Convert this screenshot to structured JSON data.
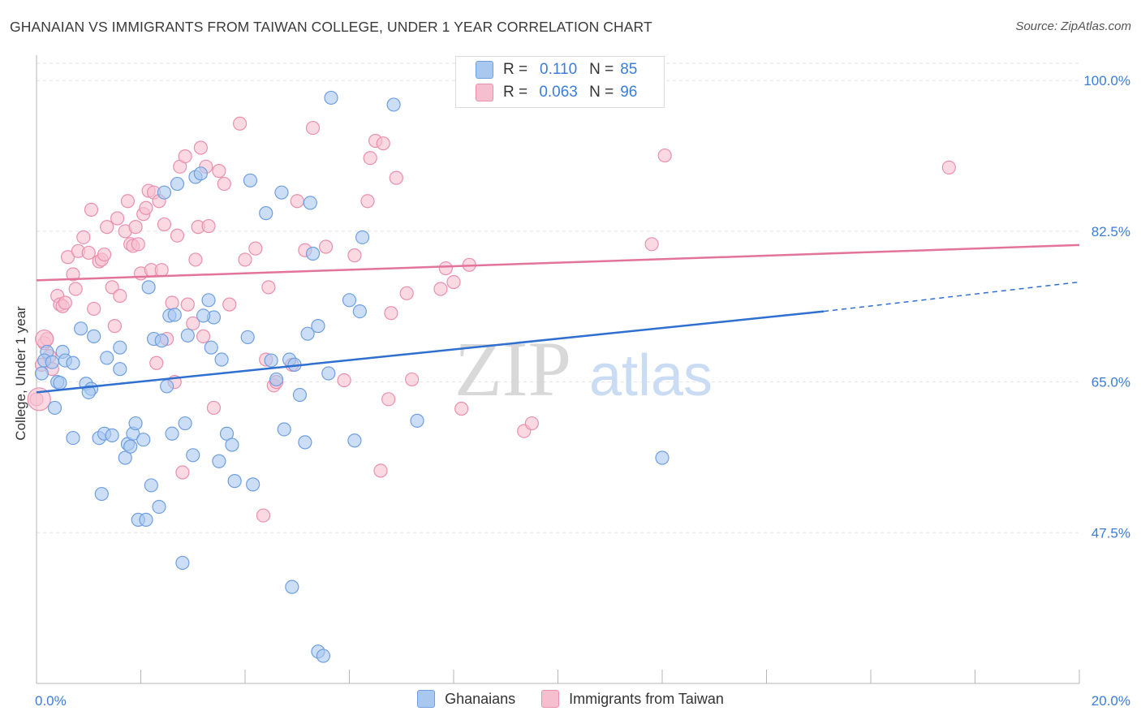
{
  "title": "GHANAIAN VS IMMIGRANTS FROM TAIWAN COLLEGE, UNDER 1 YEAR CORRELATION CHART",
  "source": "Source: ZipAtlas.com",
  "watermark": {
    "zip": "ZIP",
    "atlas": "atlas"
  },
  "legend": {
    "r_label": "R =",
    "n_label": "N =",
    "ghanaians": {
      "r": "0.110",
      "n": "85"
    },
    "taiwan": {
      "r": "0.063",
      "n": "96"
    }
  },
  "colors": {
    "blue_fill": "#a9c8f0",
    "blue_stroke": "#6f9fe0",
    "blue_line": "#2f6fd0",
    "pink_fill": "#f6bfd0",
    "pink_stroke": "#ea8fae",
    "pink_line": "#e2739b",
    "tick_label": "#3b7dd8",
    "grid": "#e2e2e2"
  },
  "chart_data": {
    "type": "scatter",
    "title": "GHANAIAN VS IMMIGRANTS FROM TAIWAN COLLEGE, UNDER 1 YEAR CORRELATION CHART",
    "xlabel": "",
    "ylabel": "College, Under 1 year",
    "xlim": [
      0,
      20
    ],
    "ylim": [
      30,
      102
    ],
    "x_tick_labels": [
      "0.0%",
      "20.0%"
    ],
    "y_ticks": [
      47.5,
      65.0,
      82.5,
      100.0
    ],
    "y_tick_labels": [
      "47.5%",
      "65.0%",
      "82.5%",
      "100.0%"
    ],
    "grid": "horizontal dashed",
    "legend_placement": "top-center",
    "series": [
      {
        "name": "Ghanaians",
        "r": 0.11,
        "n": 85,
        "trend": {
          "x0": 0,
          "y0": 63.8,
          "x1": 15.1,
          "y1": 73.2,
          "dashed_to_x": 20,
          "dashed_to_y": 76.6
        },
        "points": [
          [
            0.1,
            66.0
          ],
          [
            0.2,
            68.5
          ],
          [
            0.15,
            67.5
          ],
          [
            0.35,
            62.0
          ],
          [
            0.4,
            65.0
          ],
          [
            0.5,
            68.5
          ],
          [
            0.55,
            67.5
          ],
          [
            0.7,
            58.5
          ],
          [
            0.7,
            67.2
          ],
          [
            0.85,
            71.2
          ],
          [
            0.95,
            64.8
          ],
          [
            1.05,
            64.2
          ],
          [
            1.1,
            70.3
          ],
          [
            1.2,
            58.5
          ],
          [
            1.25,
            52.0
          ],
          [
            1.3,
            59.0
          ],
          [
            1.35,
            67.8
          ],
          [
            1.45,
            58.8
          ],
          [
            1.6,
            69.0
          ],
          [
            1.6,
            66.5
          ],
          [
            1.7,
            56.2
          ],
          [
            1.75,
            57.8
          ],
          [
            1.8,
            57.5
          ],
          [
            1.85,
            59.0
          ],
          [
            1.9,
            60.2
          ],
          [
            1.95,
            49.0
          ],
          [
            2.05,
            58.3
          ],
          [
            2.1,
            49.0
          ],
          [
            2.15,
            76.0
          ],
          [
            2.2,
            53.0
          ],
          [
            2.25,
            70.0
          ],
          [
            2.35,
            50.5
          ],
          [
            2.4,
            69.8
          ],
          [
            2.5,
            64.5
          ],
          [
            2.55,
            72.7
          ],
          [
            2.6,
            59.0
          ],
          [
            2.65,
            72.8
          ],
          [
            2.7,
            88.0
          ],
          [
            2.8,
            44.0
          ],
          [
            2.85,
            60.2
          ],
          [
            2.9,
            70.4
          ],
          [
            3.0,
            56.5
          ],
          [
            3.05,
            88.8
          ],
          [
            3.15,
            89.2
          ],
          [
            3.3,
            74.5
          ],
          [
            3.35,
            69.0
          ],
          [
            3.4,
            72.5
          ],
          [
            3.5,
            55.8
          ],
          [
            3.55,
            67.6
          ],
          [
            3.65,
            59.0
          ],
          [
            3.75,
            57.7
          ],
          [
            3.8,
            53.5
          ],
          [
            4.05,
            70.2
          ],
          [
            4.1,
            88.4
          ],
          [
            4.15,
            53.1
          ],
          [
            4.4,
            84.6
          ],
          [
            4.5,
            67.5
          ],
          [
            4.6,
            65.3
          ],
          [
            4.7,
            87.0
          ],
          [
            4.75,
            59.5
          ],
          [
            4.85,
            67.6
          ],
          [
            4.9,
            41.2
          ],
          [
            5.05,
            63.5
          ],
          [
            5.15,
            58.0
          ],
          [
            5.2,
            70.6
          ],
          [
            5.25,
            85.8
          ],
          [
            5.3,
            79.9
          ],
          [
            5.4,
            71.5
          ],
          [
            5.4,
            33.7
          ],
          [
            5.5,
            33.2
          ],
          [
            5.6,
            66.0
          ],
          [
            5.65,
            98.0
          ],
          [
            6.0,
            74.5
          ],
          [
            6.1,
            58.2
          ],
          [
            6.2,
            73.2
          ],
          [
            6.25,
            81.8
          ],
          [
            6.85,
            97.2
          ],
          [
            7.3,
            60.5
          ],
          [
            12.0,
            56.2
          ],
          [
            0.3,
            67.3
          ],
          [
            0.45,
            64.9
          ],
          [
            1.0,
            63.8
          ],
          [
            2.45,
            87.0
          ],
          [
            3.2,
            72.7
          ],
          [
            4.95,
            67.0
          ]
        ]
      },
      {
        "name": "Immigrants from Taiwan",
        "r": 0.063,
        "n": 96,
        "trend": {
          "x0": 0,
          "y0": 76.8,
          "x1": 20,
          "y1": 80.9
        },
        "points": [
          [
            0.0,
            63.0
          ],
          [
            0.1,
            67.0
          ],
          [
            0.15,
            69.5
          ],
          [
            0.2,
            70.0
          ],
          [
            0.25,
            68.0
          ],
          [
            0.3,
            66.5
          ],
          [
            0.4,
            75.0
          ],
          [
            0.45,
            74.0
          ],
          [
            0.5,
            73.8
          ],
          [
            0.55,
            74.2
          ],
          [
            0.6,
            79.5
          ],
          [
            0.7,
            77.5
          ],
          [
            0.75,
            75.8
          ],
          [
            0.8,
            80.2
          ],
          [
            0.9,
            81.8
          ],
          [
            1.0,
            80.0
          ],
          [
            1.05,
            85.0
          ],
          [
            1.1,
            73.5
          ],
          [
            1.2,
            79.0
          ],
          [
            1.25,
            79.2
          ],
          [
            1.3,
            79.8
          ],
          [
            1.35,
            83.0
          ],
          [
            1.45,
            76.0
          ],
          [
            1.5,
            71.5
          ],
          [
            1.55,
            84.0
          ],
          [
            1.6,
            75.0
          ],
          [
            1.7,
            82.5
          ],
          [
            1.75,
            86.0
          ],
          [
            1.8,
            81.0
          ],
          [
            1.85,
            80.8
          ],
          [
            1.9,
            83.0
          ],
          [
            1.95,
            81.0
          ],
          [
            2.0,
            77.6
          ],
          [
            2.05,
            84.5
          ],
          [
            2.1,
            85.2
          ],
          [
            2.15,
            87.2
          ],
          [
            2.2,
            78.0
          ],
          [
            2.25,
            87.0
          ],
          [
            2.3,
            67.2
          ],
          [
            2.35,
            86.0
          ],
          [
            2.4,
            78.0
          ],
          [
            2.45,
            83.3
          ],
          [
            2.5,
            70.0
          ],
          [
            2.6,
            74.2
          ],
          [
            2.65,
            65.0
          ],
          [
            2.7,
            82.0
          ],
          [
            2.75,
            90.0
          ],
          [
            2.8,
            54.5
          ],
          [
            2.85,
            91.2
          ],
          [
            2.9,
            74.0
          ],
          [
            3.0,
            71.8
          ],
          [
            3.05,
            79.2
          ],
          [
            3.1,
            83.0
          ],
          [
            3.15,
            92.2
          ],
          [
            3.2,
            70.3
          ],
          [
            3.25,
            90.0
          ],
          [
            3.3,
            83.1
          ],
          [
            3.4,
            62.0
          ],
          [
            3.5,
            89.5
          ],
          [
            3.6,
            88.0
          ],
          [
            3.7,
            74.0
          ],
          [
            3.9,
            95.0
          ],
          [
            4.0,
            79.2
          ],
          [
            4.2,
            80.5
          ],
          [
            4.35,
            49.5
          ],
          [
            4.4,
            67.6
          ],
          [
            4.45,
            76.0
          ],
          [
            4.55,
            64.6
          ],
          [
            4.6,
            65.0
          ],
          [
            4.9,
            67.0
          ],
          [
            5.0,
            86.0
          ],
          [
            5.15,
            80.3
          ],
          [
            5.3,
            94.5
          ],
          [
            5.55,
            80.7
          ],
          [
            5.9,
            65.2
          ],
          [
            6.1,
            79.7
          ],
          [
            6.35,
            86.0
          ],
          [
            6.4,
            91.0
          ],
          [
            6.5,
            93.0
          ],
          [
            6.6,
            54.7
          ],
          [
            6.65,
            92.7
          ],
          [
            6.75,
            63.0
          ],
          [
            6.8,
            73.0
          ],
          [
            6.9,
            88.7
          ],
          [
            7.1,
            75.3
          ],
          [
            7.2,
            65.3
          ],
          [
            7.75,
            75.8
          ],
          [
            7.85,
            78.2
          ],
          [
            8.0,
            76.6
          ],
          [
            8.15,
            61.9
          ],
          [
            8.3,
            78.6
          ],
          [
            9.35,
            59.3
          ],
          [
            9.5,
            60.2
          ],
          [
            11.8,
            81.0
          ],
          [
            12.05,
            91.3
          ],
          [
            17.5,
            89.9
          ]
        ]
      }
    ]
  }
}
